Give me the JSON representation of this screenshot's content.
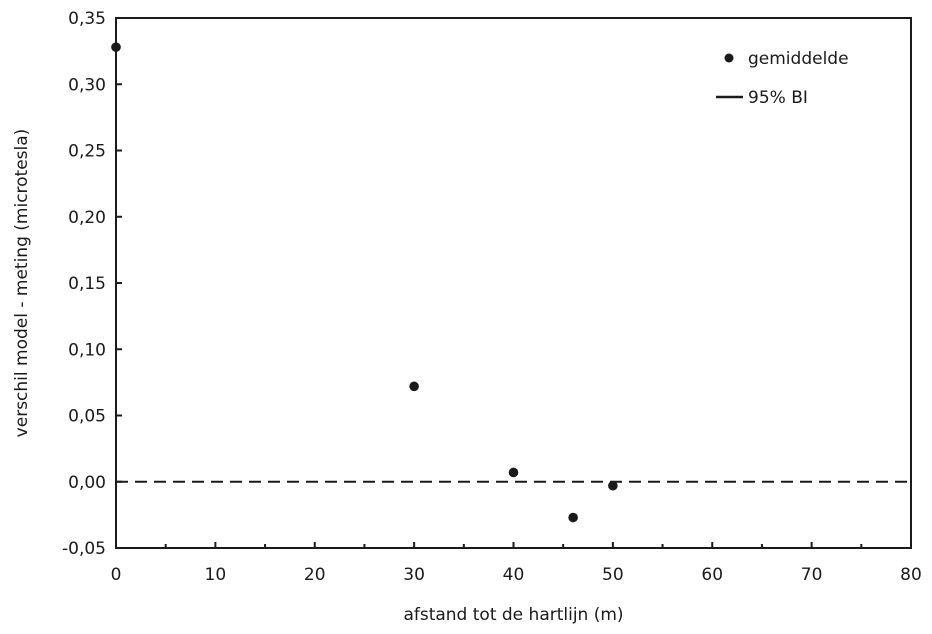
{
  "chart_data": {
    "type": "scatter",
    "xlabel": "afstand tot de hartlijn (m)",
    "ylabel": "verschil model - meting (microtesla)",
    "xlim": [
      0,
      80
    ],
    "ylim": [
      -0.05,
      0.35
    ],
    "x_ticks": [
      "0",
      "10",
      "20",
      "30",
      "40",
      "50",
      "60",
      "70",
      "80"
    ],
    "x_tick_values": [
      0,
      10,
      20,
      30,
      40,
      50,
      60,
      70,
      80
    ],
    "y_ticks": [
      "-0,05",
      "0,00",
      "0,05",
      "0,10",
      "0,15",
      "0,20",
      "0,25",
      "0,30",
      "0,35"
    ],
    "y_tick_values": [
      -0.05,
      0.0,
      0.05,
      0.1,
      0.15,
      0.2,
      0.25,
      0.3,
      0.35
    ],
    "grid": false,
    "legend_position": "top-right",
    "series": [
      {
        "name": "gemiddelde",
        "x": [
          0,
          30,
          40,
          46,
          50
        ],
        "y": [
          0.328,
          0.072,
          0.007,
          -0.027,
          -0.003
        ]
      }
    ],
    "legend": [
      "gemiddelde",
      "95% BI"
    ],
    "reference_line": {
      "y": 0.0,
      "style": "dashed"
    },
    "colors": {
      "marker": "#1a1a1a",
      "axis": "#1a1a1a",
      "background": "#ffffff"
    }
  }
}
